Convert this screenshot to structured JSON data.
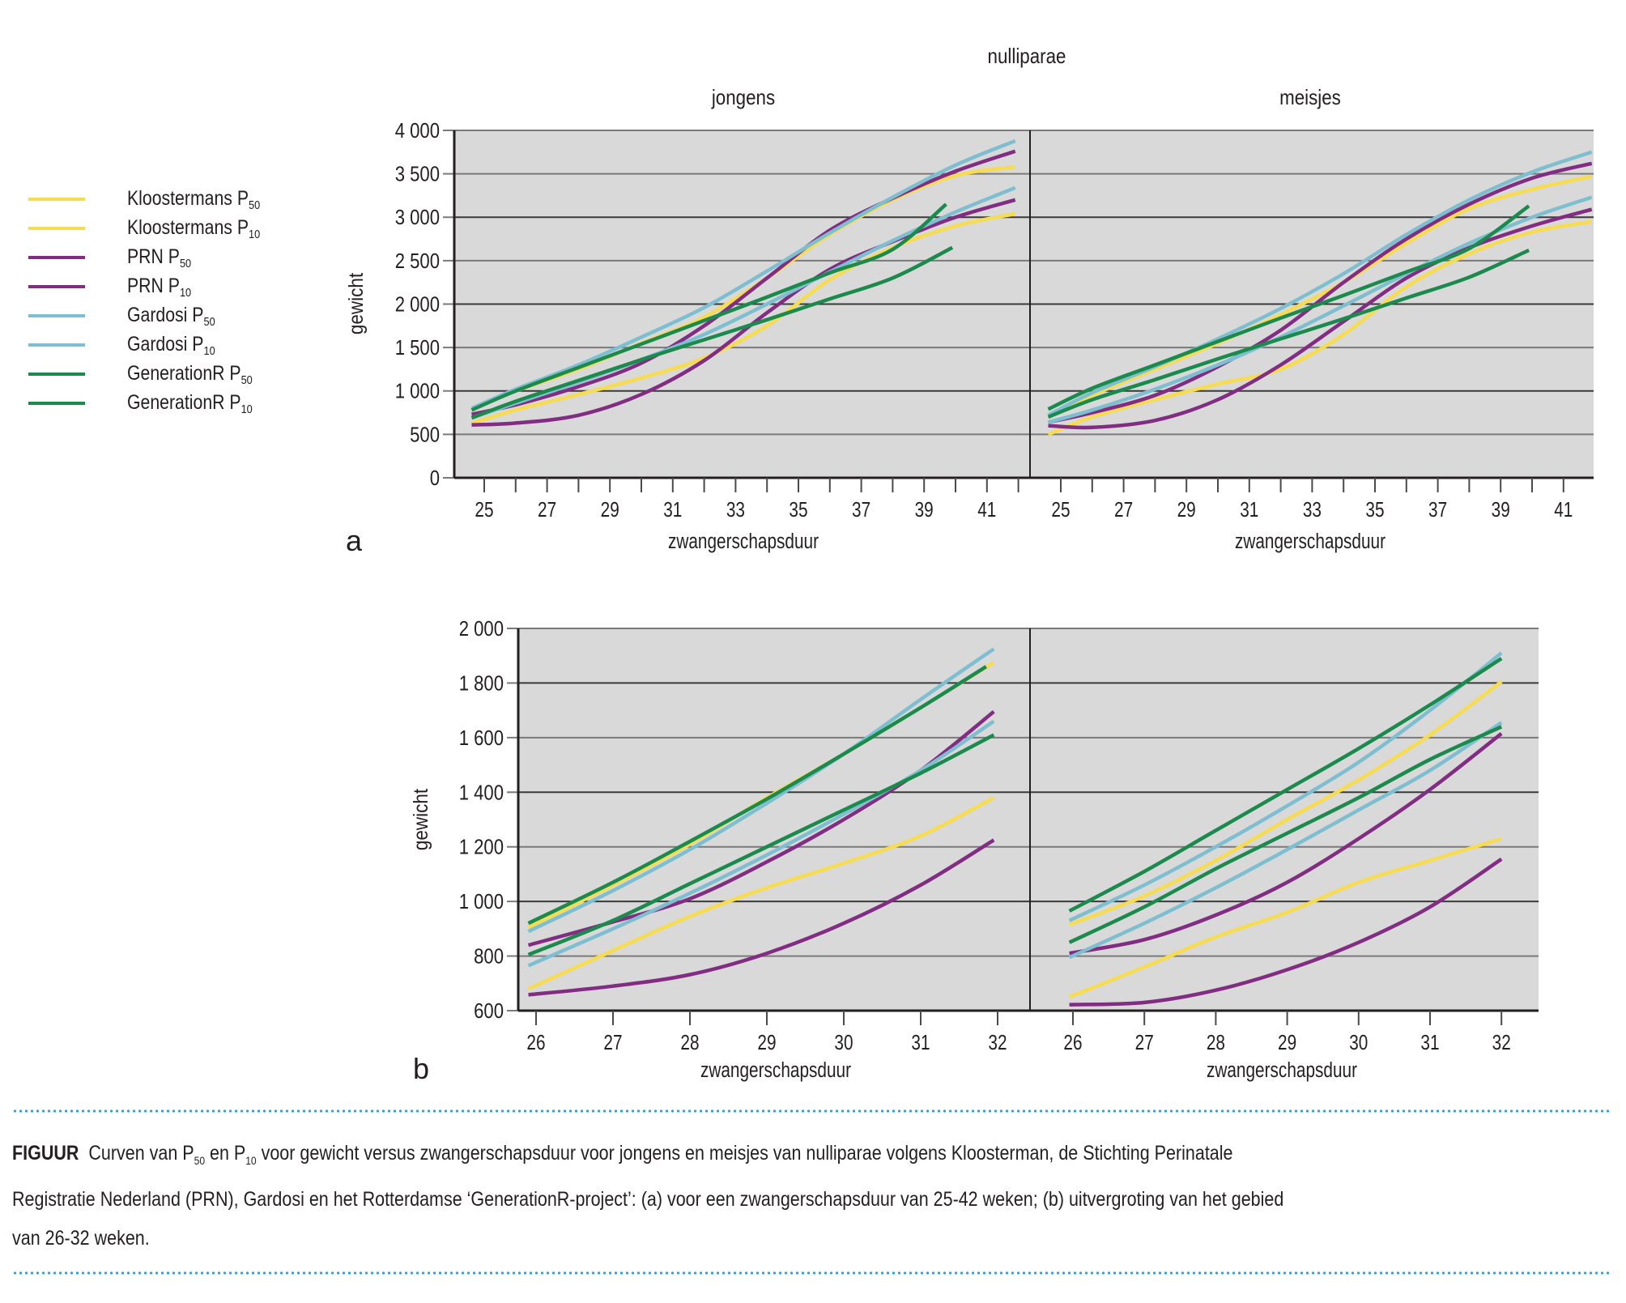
{
  "legend": [
    {
      "name": "Kloostermans",
      "sub": "50",
      "color": "#f7dc4f"
    },
    {
      "name": "Kloostermans",
      "sub": "10",
      "color": "#f7dc4f"
    },
    {
      "name": "PRN",
      "sub": "50",
      "color": "#822c83"
    },
    {
      "name": "PRN",
      "sub": "10",
      "color": "#822c83"
    },
    {
      "name": "Gardosi",
      "sub": "50",
      "color": "#7dbfd0"
    },
    {
      "name": "Gardosi",
      "sub": "10",
      "color": "#7dbfd0"
    },
    {
      "name": "GenerationR",
      "sub": "50",
      "color": "#1b8a4d"
    },
    {
      "name": "GenerationR",
      "sub": "10",
      "color": "#1b8a4d"
    }
  ],
  "legend_prefix": "P",
  "caption": {
    "label": "FIGUUR",
    "line1_a": "Curven van P",
    "sub1": "50",
    "line1_b": " en P",
    "sub2": "10",
    "line1_c": " voor gewicht versus zwangerschapsduur voor jongens en meisjes van nulliparae volgens Kloosterman, de Stichting Perinatale",
    "line2": "Registratie Nederland (PRN), Gardosi en het Rotterdamse ‘GenerationR-project’: (a) voor een zwangerschapsduur van 25-42 weken; (b) uitvergroting van het gebied",
    "line3": "van 26-32 weken."
  },
  "chart_data": [
    {
      "type": "line",
      "panel_label": "a",
      "title": "nulliparae",
      "ylabel": "gewicht",
      "xlabel": "zwangerschapsduur",
      "ylim": [
        0,
        4000
      ],
      "yticks": [
        0,
        500,
        1000,
        1500,
        2000,
        2500,
        3000,
        3500,
        4000
      ],
      "ytick_labels": [
        "0",
        "500",
        "1 000",
        "1 500",
        "2 000",
        "2 500",
        "3 000",
        "3 500",
        "4 000"
      ],
      "xlim": [
        24,
        42.4
      ],
      "xticks": [
        25,
        27,
        29,
        31,
        33,
        35,
        37,
        39,
        41
      ],
      "grid": true,
      "legend_position": "left",
      "facets": [
        {
          "name": "jongens",
          "series": [
            {
              "name": "Kloostermans P50",
              "color": "#f7dc4f",
              "x": [
                24.6,
                26,
                28,
                30,
                32,
                34,
                36,
                38,
                40,
                41.9
              ],
              "y": [
                800,
                1000,
                1250,
                1550,
                1850,
                2300,
                2800,
                3200,
                3480,
                3580
              ]
            },
            {
              "name": "Kloostermans P10",
              "color": "#f7dc4f",
              "x": [
                24.6,
                26,
                28,
                30,
                32,
                34,
                36,
                38,
                40,
                41.9
              ],
              "y": [
                630,
                780,
                960,
                1150,
                1380,
                1750,
                2280,
                2650,
                2900,
                3040
              ]
            },
            {
              "name": "PRN P50",
              "color": "#822c83",
              "x": [
                24.6,
                26,
                28,
                30,
                32,
                34,
                36,
                38,
                40,
                41.9
              ],
              "y": [
                730,
                840,
                1050,
                1320,
                1750,
                2300,
                2850,
                3220,
                3530,
                3760
              ]
            },
            {
              "name": "PRN P10",
              "color": "#822c83",
              "x": [
                24.6,
                26,
                28,
                30,
                32,
                34,
                36,
                38,
                40,
                41.9
              ],
              "y": [
                610,
                630,
                720,
                960,
                1350,
                1900,
                2400,
                2720,
                3000,
                3200
              ]
            },
            {
              "name": "Gardosi P50",
              "color": "#7dbfd0",
              "x": [
                24.6,
                26,
                28,
                30,
                32,
                34,
                36,
                38,
                40,
                41.9
              ],
              "y": [
                800,
                1020,
                1300,
                1620,
                1960,
                2380,
                2820,
                3230,
                3600,
                3880
              ]
            },
            {
              "name": "Gardosi P10",
              "color": "#7dbfd0",
              "x": [
                24.6,
                26,
                28,
                30,
                32,
                34,
                36,
                38,
                40,
                41.9
              ],
              "y": [
                690,
                860,
                1100,
                1360,
                1650,
                2000,
                2370,
                2730,
                3060,
                3340
              ]
            },
            {
              "name": "GenerationR P50",
              "color": "#1b8a4d",
              "x": [
                24.6,
                26,
                28,
                30,
                32,
                34,
                36,
                38,
                39.7
              ],
              "y": [
                780,
                1000,
                1270,
                1540,
                1810,
                2080,
                2360,
                2630,
                3150
              ]
            },
            {
              "name": "GenerationR P10",
              "color": "#1b8a4d",
              "x": [
                24.6,
                26,
                28,
                30,
                32,
                34,
                36,
                38,
                39.9
              ],
              "y": [
                690,
                880,
                1120,
                1360,
                1590,
                1820,
                2060,
                2300,
                2650
              ]
            }
          ]
        },
        {
          "name": "meisjes",
          "series": [
            {
              "name": "Kloostermans P50",
              "color": "#f7dc4f",
              "x": [
                24.6,
                26,
                28,
                30,
                32,
                34,
                36,
                38,
                40,
                41.9
              ],
              "y": [
                700,
                950,
                1250,
                1550,
                1880,
                2250,
                2700,
                3100,
                3320,
                3470
              ]
            },
            {
              "name": "Kloostermans P10",
              "color": "#f7dc4f",
              "x": [
                24.6,
                26,
                28,
                30,
                32,
                34,
                36,
                38,
                40,
                41.9
              ],
              "y": [
                500,
                700,
                900,
                1080,
                1250,
                1650,
                2200,
                2580,
                2830,
                2950
              ]
            },
            {
              "name": "PRN P50",
              "color": "#822c83",
              "x": [
                24.6,
                26,
                28,
                30,
                32,
                34,
                36,
                38,
                40,
                41.9
              ],
              "y": [
                640,
                750,
                950,
                1280,
                1700,
                2250,
                2750,
                3150,
                3450,
                3620
              ]
            },
            {
              "name": "PRN P10",
              "color": "#822c83",
              "x": [
                24.6,
                26,
                28,
                30,
                32,
                34,
                36,
                38,
                40,
                41.9
              ],
              "y": [
                600,
                580,
                660,
                900,
                1300,
                1800,
                2300,
                2650,
                2900,
                3090
              ]
            },
            {
              "name": "Gardosi P50",
              "color": "#7dbfd0",
              "x": [
                24.6,
                26,
                28,
                30,
                32,
                34,
                36,
                38,
                40,
                41.9
              ],
              "y": [
                720,
                980,
                1280,
                1600,
                1950,
                2350,
                2800,
                3200,
                3520,
                3750
              ]
            },
            {
              "name": "Gardosi P10",
              "color": "#7dbfd0",
              "x": [
                24.6,
                26,
                28,
                30,
                32,
                34,
                36,
                38,
                40,
                41.9
              ],
              "y": [
                640,
                780,
                1020,
                1300,
                1620,
                1980,
                2350,
                2700,
                3000,
                3230
              ]
            },
            {
              "name": "GenerationR P50",
              "color": "#1b8a4d",
              "x": [
                24.6,
                26,
                28,
                30,
                32,
                34,
                36,
                38,
                39.9
              ],
              "y": [
                790,
                1030,
                1300,
                1570,
                1840,
                2100,
                2370,
                2640,
                3130
              ]
            },
            {
              "name": "GenerationR P10",
              "color": "#1b8a4d",
              "x": [
                24.6,
                26,
                28,
                30,
                32,
                34,
                36,
                38,
                39.9
              ],
              "y": [
                700,
                900,
                1130,
                1370,
                1600,
                1830,
                2070,
                2310,
                2620
              ]
            }
          ]
        }
      ]
    },
    {
      "type": "line",
      "panel_label": "b",
      "ylabel": "gewicht",
      "xlabel": "zwangerschapsduur",
      "ylim": [
        600,
        2000
      ],
      "yticks": [
        600,
        800,
        1000,
        1200,
        1400,
        1600,
        1800,
        2000
      ],
      "ytick_labels": [
        "600",
        "800",
        "1 000",
        "1 200",
        "1 400",
        "1 600",
        "1 800",
        "2 000"
      ],
      "xlim": [
        25.7,
        32.5
      ],
      "xticks": [
        26,
        27,
        28,
        29,
        30,
        31,
        32
      ],
      "grid": true,
      "facets": [
        {
          "name": "jongens",
          "series": [
            {
              "name": "Kloostermans P50",
              "color": "#f7dc4f",
              "x": [
                25.9,
                27,
                28,
                29,
                30,
                31,
                31.95
              ],
              "y": [
                905,
                1060,
                1210,
                1380,
                1540,
                1710,
                1875
              ]
            },
            {
              "name": "Kloostermans P10",
              "color": "#f7dc4f",
              "x": [
                25.9,
                27,
                28,
                29,
                30,
                31,
                31.95
              ],
              "y": [
                680,
                820,
                945,
                1050,
                1140,
                1240,
                1380
              ]
            },
            {
              "name": "PRN P50",
              "color": "#822c83",
              "x": [
                25.9,
                27,
                28,
                29,
                30,
                31,
                31.95
              ],
              "y": [
                840,
                925,
                1010,
                1145,
                1300,
                1480,
                1695
              ]
            },
            {
              "name": "PRN P10",
              "color": "#822c83",
              "x": [
                25.9,
                27,
                28,
                29,
                30,
                31,
                31.95
              ],
              "y": [
                658,
                690,
                732,
                810,
                920,
                1060,
                1225
              ]
            },
            {
              "name": "Gardosi P50",
              "color": "#7dbfd0",
              "x": [
                25.9,
                27,
                28,
                29,
                30,
                31,
                31.95
              ],
              "y": [
                890,
                1040,
                1190,
                1360,
                1540,
                1740,
                1925
              ]
            },
            {
              "name": "Gardosi P10",
              "color": "#7dbfd0",
              "x": [
                25.9,
                27,
                28,
                29,
                30,
                31,
                31.95
              ],
              "y": [
                765,
                900,
                1030,
                1170,
                1320,
                1480,
                1660
              ]
            },
            {
              "name": "GenerationR P50",
              "color": "#1b8a4d",
              "x": [
                25.9,
                27,
                28,
                29,
                30,
                31,
                31.85
              ],
              "y": [
                920,
                1070,
                1220,
                1375,
                1540,
                1710,
                1860
              ]
            },
            {
              "name": "GenerationR P10",
              "color": "#1b8a4d",
              "x": [
                25.9,
                27,
                28,
                29,
                30,
                31,
                31.95
              ],
              "y": [
                805,
                930,
                1065,
                1200,
                1335,
                1470,
                1610
              ]
            }
          ]
        },
        {
          "name": "meisjes",
          "series": [
            {
              "name": "Kloostermans P50",
              "color": "#f7dc4f",
              "x": [
                25.95,
                27,
                28,
                29,
                30,
                31,
                32
              ],
              "y": [
                915,
                1020,
                1150,
                1300,
                1445,
                1610,
                1805
              ]
            },
            {
              "name": "Kloostermans P10",
              "color": "#f7dc4f",
              "x": [
                25.95,
                27,
                28,
                29,
                30,
                31,
                32
              ],
              "y": [
                650,
                760,
                870,
                960,
                1070,
                1150,
                1230
              ]
            },
            {
              "name": "PRN P50",
              "color": "#822c83",
              "x": [
                25.95,
                27,
                28,
                29,
                30,
                31,
                32
              ],
              "y": [
                810,
                860,
                950,
                1070,
                1230,
                1410,
                1615
              ]
            },
            {
              "name": "PRN P10",
              "color": "#822c83",
              "x": [
                25.95,
                27,
                28,
                29,
                30,
                31,
                32
              ],
              "y": [
                622,
                630,
                675,
                750,
                850,
                980,
                1155
              ]
            },
            {
              "name": "Gardosi P50",
              "color": "#7dbfd0",
              "x": [
                25.95,
                27,
                28,
                29,
                30,
                31,
                32
              ],
              "y": [
                930,
                1060,
                1200,
                1350,
                1510,
                1700,
                1910
              ]
            },
            {
              "name": "Gardosi P10",
              "color": "#7dbfd0",
              "x": [
                25.95,
                27,
                28,
                29,
                30,
                31,
                32
              ],
              "y": [
                795,
                920,
                1050,
                1190,
                1335,
                1480,
                1655
              ]
            },
            {
              "name": "GenerationR P50",
              "color": "#1b8a4d",
              "x": [
                25.95,
                27,
                28,
                29,
                30,
                31,
                32
              ],
              "y": [
                965,
                1110,
                1260,
                1410,
                1560,
                1720,
                1890
              ]
            },
            {
              "name": "GenerationR P10",
              "color": "#1b8a4d",
              "x": [
                25.95,
                27,
                28,
                29,
                30,
                31,
                32
              ],
              "y": [
                850,
                980,
                1120,
                1250,
                1380,
                1520,
                1640
              ]
            }
          ]
        }
      ]
    }
  ]
}
